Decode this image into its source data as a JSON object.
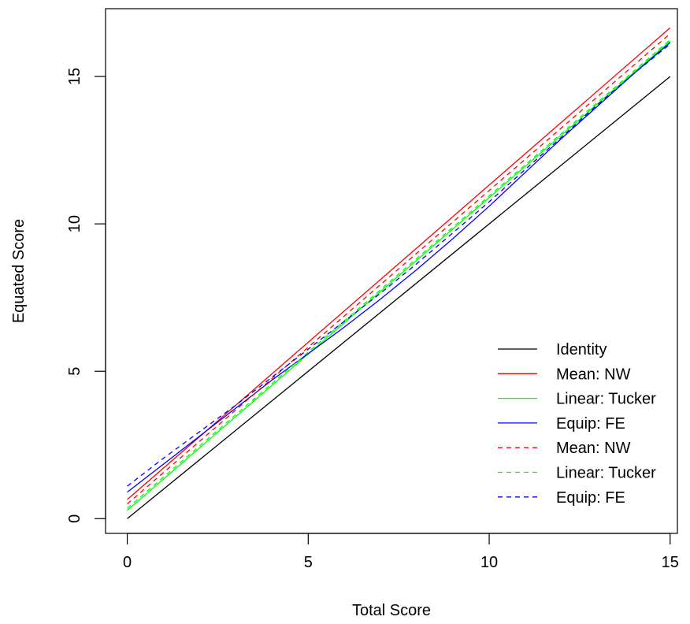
{
  "chart_data": {
    "type": "line",
    "xlabel": "Total Score",
    "ylabel": "Equated Score",
    "xlim": [
      -0.6,
      15.2
    ],
    "ylim": [
      -0.5,
      17.3
    ],
    "xticks": [
      0,
      5,
      10,
      15
    ],
    "yticks": [
      0,
      5,
      10,
      15
    ],
    "grid": false,
    "legend_position": "bottom-right",
    "series": [
      {
        "name": "Identity",
        "color": "#000000",
        "dash": "solid",
        "x": [
          0,
          15
        ],
        "y": [
          0,
          15
        ]
      },
      {
        "name": "Mean: NW",
        "color": "#ff0000",
        "dash": "solid",
        "x": [
          0,
          15
        ],
        "y": [
          0.65,
          16.65
        ]
      },
      {
        "name": "Linear: Tucker",
        "color": "#00ff00",
        "dash": "solid",
        "x": [
          0,
          15
        ],
        "y": [
          0.28,
          16.2
        ]
      },
      {
        "name": "Equip: FE",
        "color": "#0000ff",
        "dash": "solid",
        "x": [
          0,
          1,
          2,
          3,
          4,
          5,
          6,
          7,
          8,
          9,
          10,
          11,
          12,
          13,
          14,
          15
        ],
        "y": [
          0.9,
          1.85,
          2.8,
          3.75,
          4.7,
          5.6,
          6.5,
          7.45,
          8.45,
          9.5,
          10.6,
          11.75,
          12.9,
          14.0,
          15.1,
          16.15
        ]
      },
      {
        "name": "Mean: NW",
        "color": "#ff0000",
        "dash": "dashed",
        "x": [
          0,
          15
        ],
        "y": [
          0.5,
          16.45
        ]
      },
      {
        "name": "Linear: Tucker",
        "color": "#00ff00",
        "dash": "dashed",
        "x": [
          0,
          15
        ],
        "y": [
          0.35,
          16.25
        ]
      },
      {
        "name": "Equip: FE",
        "color": "#0000ff",
        "dash": "dashed",
        "x": [
          0,
          1,
          2,
          3,
          4,
          5,
          6,
          7,
          8,
          9,
          10,
          11,
          12,
          13,
          14,
          15
        ],
        "y": [
          1.1,
          2.05,
          2.95,
          3.85,
          4.8,
          5.75,
          6.7,
          7.65,
          8.65,
          9.7,
          10.75,
          11.85,
          12.95,
          14.05,
          15.1,
          16.1
        ]
      }
    ]
  }
}
